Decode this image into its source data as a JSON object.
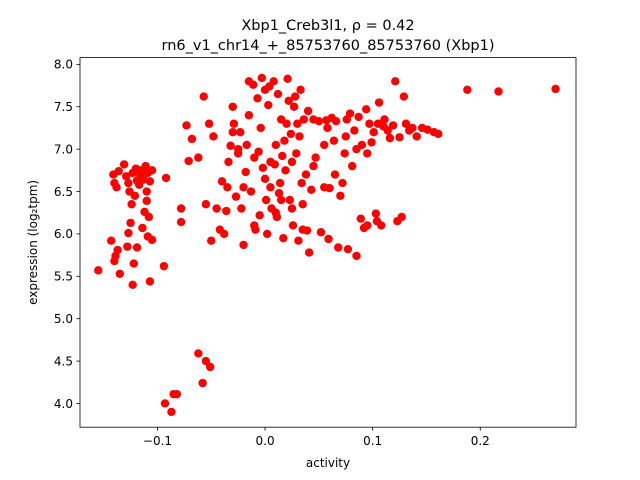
{
  "chart_data": {
    "type": "scatter",
    "title_line1": "Xbp1_Creb3l1, ρ = 0.42",
    "title_line2": "rn6_v1_chr14_+_85753760_85753760 (Xbp1)",
    "xlabel": "activity",
    "ylabel": "expression (log₂tpm)",
    "xlim": [
      -0.172,
      0.289
    ],
    "ylim": [
      3.72,
      8.08
    ],
    "xticks": [
      {
        "value": -0.1,
        "label": "−0.1"
      },
      {
        "value": 0.0,
        "label": "0.0"
      },
      {
        "value": 0.1,
        "label": "0.1"
      },
      {
        "value": 0.2,
        "label": "0.2"
      }
    ],
    "yticks": [
      {
        "value": 4.0,
        "label": "4.0"
      },
      {
        "value": 4.5,
        "label": "4.5"
      },
      {
        "value": 5.0,
        "label": "5.0"
      },
      {
        "value": 5.5,
        "label": "5.5"
      },
      {
        "value": 6.0,
        "label": "6.0"
      },
      {
        "value": 6.5,
        "label": "6.5"
      },
      {
        "value": 7.0,
        "label": "7.0"
      },
      {
        "value": 7.5,
        "label": "7.5"
      },
      {
        "value": 8.0,
        "label": "8.0"
      }
    ],
    "grid": false,
    "marker_color": "#ff0000",
    "points": [
      [
        -0.155,
        5.57
      ],
      [
        -0.143,
        5.92
      ],
      [
        -0.14,
        5.68
      ],
      [
        -0.139,
        5.74
      ],
      [
        -0.137,
        5.81
      ],
      [
        -0.135,
        5.53
      ],
      [
        -0.128,
        5.85
      ],
      [
        -0.127,
        6.01
      ],
      [
        -0.125,
        6.13
      ],
      [
        -0.123,
        5.4
      ],
      [
        -0.122,
        5.65
      ],
      [
        -0.119,
        5.84
      ],
      [
        -0.114,
        6.07
      ],
      [
        -0.112,
        6.26
      ],
      [
        -0.11,
        6.39
      ],
      [
        -0.108,
        6.2
      ],
      [
        -0.109,
        5.97
      ],
      [
        -0.107,
        5.44
      ],
      [
        -0.105,
        5.93
      ],
      [
        -0.094,
        5.62
      ],
      [
        -0.092,
        6.66
      ],
      [
        -0.141,
        6.7
      ],
      [
        -0.14,
        6.6
      ],
      [
        -0.138,
        6.55
      ],
      [
        -0.136,
        6.74
      ],
      [
        -0.131,
        6.82
      ],
      [
        -0.129,
        6.68
      ],
      [
        -0.127,
        6.6
      ],
      [
        -0.126,
        6.5
      ],
      [
        -0.124,
        6.35
      ],
      [
        -0.123,
        6.72
      ],
      [
        -0.12,
        6.77
      ],
      [
        -0.119,
        6.63
      ],
      [
        -0.117,
        6.58
      ],
      [
        -0.116,
        6.7
      ],
      [
        -0.115,
        6.75
      ],
      [
        -0.113,
        6.64
      ],
      [
        -0.111,
        6.8
      ],
      [
        -0.109,
        6.72
      ],
      [
        -0.107,
        6.62
      ],
      [
        -0.105,
        6.75
      ],
      [
        -0.11,
        6.5
      ],
      [
        -0.121,
        6.45
      ],
      [
        -0.093,
        4.0
      ],
      [
        -0.087,
        3.9
      ],
      [
        -0.085,
        4.11
      ],
      [
        -0.082,
        4.11
      ],
      [
        -0.062,
        4.59
      ],
      [
        -0.058,
        4.24
      ],
      [
        -0.055,
        4.5
      ],
      [
        -0.051,
        4.43
      ],
      [
        -0.078,
        6.3
      ],
      [
        -0.078,
        6.14
      ],
      [
        -0.071,
        6.86
      ],
      [
        -0.068,
        7.12
      ],
      [
        -0.073,
        7.28
      ],
      [
        -0.062,
        6.9
      ],
      [
        -0.057,
        7.62
      ],
      [
        -0.052,
        7.3
      ],
      [
        -0.048,
        7.15
      ],
      [
        -0.055,
        6.35
      ],
      [
        -0.05,
        5.92
      ],
      [
        -0.045,
        6.3
      ],
      [
        -0.04,
        6.62
      ],
      [
        -0.038,
        6.0
      ],
      [
        -0.036,
        6.27
      ],
      [
        -0.034,
        6.85
      ],
      [
        -0.032,
        7.04
      ],
      [
        -0.03,
        7.2
      ],
      [
        -0.03,
        7.5
      ],
      [
        -0.029,
        7.3
      ],
      [
        -0.027,
        6.44
      ],
      [
        -0.025,
        6.95
      ],
      [
        -0.023,
        7.2
      ],
      [
        -0.022,
        6.3
      ],
      [
        -0.02,
        5.87
      ],
      [
        -0.018,
        6.73
      ],
      [
        -0.017,
        7.05
      ],
      [
        -0.015,
        7.4
      ],
      [
        -0.015,
        7.8
      ],
      [
        -0.013,
        6.5
      ],
      [
        -0.011,
        7.76
      ],
      [
        -0.01,
        6.9
      ],
      [
        -0.009,
        6.05
      ],
      [
        -0.007,
        7.6
      ],
      [
        -0.006,
        6.97
      ],
      [
        -0.005,
        6.22
      ],
      [
        -0.004,
        7.25
      ],
      [
        -0.003,
        7.84
      ],
      [
        -0.002,
        6.78
      ],
      [
        0.0,
        7.7
      ],
      [
        0.001,
        6.4
      ],
      [
        0.002,
        6.0
      ],
      [
        0.003,
        7.52
      ],
      [
        0.004,
        7.74
      ],
      [
        0.005,
        6.55
      ],
      [
        0.006,
        6.3
      ],
      [
        0.008,
        7.8
      ],
      [
        0.009,
        6.82
      ],
      [
        0.01,
        7.05
      ],
      [
        0.011,
        6.2
      ],
      [
        0.012,
        7.65
      ],
      [
        0.013,
        6.48
      ],
      [
        0.014,
        6.6
      ],
      [
        0.015,
        7.35
      ],
      [
        0.016,
        6.92
      ],
      [
        0.017,
        5.95
      ],
      [
        0.018,
        7.1
      ],
      [
        0.019,
        6.75
      ],
      [
        0.02,
        7.3
      ],
      [
        0.021,
        7.83
      ],
      [
        0.022,
        7.57
      ],
      [
        0.023,
        6.4
      ],
      [
        0.024,
        7.18
      ],
      [
        0.025,
        6.85
      ],
      [
        0.026,
        6.1
      ],
      [
        0.027,
        7.5
      ],
      [
        0.028,
        7.62
      ],
      [
        0.029,
        6.95
      ],
      [
        0.03,
        7.3
      ],
      [
        0.031,
        5.92
      ],
      [
        0.032,
        7.15
      ],
      [
        0.033,
        7.7
      ],
      [
        0.034,
        6.6
      ],
      [
        0.035,
        6.35
      ],
      [
        0.036,
        7.35
      ],
      [
        0.038,
        6.7
      ],
      [
        0.039,
        6.04
      ],
      [
        0.04,
        7.45
      ],
      [
        0.041,
        5.78
      ],
      [
        0.043,
        6.52
      ],
      [
        0.045,
        7.35
      ],
      [
        0.047,
        6.9
      ],
      [
        0.05,
        7.33
      ],
      [
        0.052,
        6.02
      ],
      [
        0.055,
        6.55
      ],
      [
        0.057,
        7.34
      ],
      [
        0.058,
        7.25
      ],
      [
        0.059,
        5.94
      ],
      [
        0.06,
        6.54
      ],
      [
        0.062,
        7.37
      ],
      [
        0.064,
        7.1
      ],
      [
        0.066,
        7.33
      ],
      [
        0.068,
        5.84
      ],
      [
        0.07,
        6.45
      ],
      [
        0.072,
        6.6
      ],
      [
        0.074,
        6.95
      ],
      [
        0.076,
        7.35
      ],
      [
        0.077,
        5.82
      ],
      [
        0.079,
        7.42
      ],
      [
        0.081,
        6.8
      ],
      [
        0.083,
        7.22
      ],
      [
        0.085,
        5.74
      ],
      [
        0.087,
        7.38
      ],
      [
        0.089,
        6.18
      ],
      [
        0.09,
        7.05
      ],
      [
        0.092,
        6.07
      ],
      [
        0.094,
        7.47
      ],
      [
        0.095,
        6.1
      ],
      [
        0.097,
        7.3
      ],
      [
        0.099,
        7.08
      ],
      [
        0.101,
        7.2
      ],
      [
        0.103,
        6.24
      ],
      [
        0.104,
        6.15
      ],
      [
        0.106,
        7.55
      ],
      [
        0.108,
        6.1
      ],
      [
        0.11,
        7.27
      ],
      [
        0.111,
        7.35
      ],
      [
        0.114,
        7.22
      ],
      [
        0.116,
        7.13
      ],
      [
        0.119,
        7.28
      ],
      [
        0.121,
        7.8
      ],
      [
        0.123,
        6.15
      ],
      [
        0.125,
        7.14
      ],
      [
        0.127,
        6.2
      ],
      [
        0.129,
        7.62
      ],
      [
        0.131,
        7.3
      ],
      [
        0.134,
        7.22
      ],
      [
        0.137,
        7.25
      ],
      [
        0.141,
        7.15
      ],
      [
        0.146,
        7.25
      ],
      [
        0.151,
        7.23
      ],
      [
        0.157,
        7.2
      ],
      [
        0.161,
        7.18
      ],
      [
        0.188,
        7.7
      ],
      [
        0.217,
        7.68
      ],
      [
        0.27,
        7.71
      ],
      [
        -0.01,
        6.1
      ],
      [
        -0.02,
        6.55
      ],
      [
        0.005,
        6.85
      ],
      [
        0.015,
        6.4
      ],
      [
        0.025,
        6.3
      ],
      [
        0.035,
        6.05
      ],
      [
        -0.035,
        6.55
      ],
      [
        -0.042,
        6.05
      ],
      [
        0.045,
        6.8
      ],
      [
        0.055,
        7.05
      ],
      [
        0.065,
        6.7
      ],
      [
        0.075,
        7.15
      ],
      [
        0.085,
        7.0
      ],
      [
        0.095,
        6.95
      ],
      [
        0.105,
        7.3
      ],
      [
        -0.025,
        7.0
      ],
      [
        0.0,
        6.65
      ],
      [
        0.01,
        6.25
      ]
    ]
  }
}
